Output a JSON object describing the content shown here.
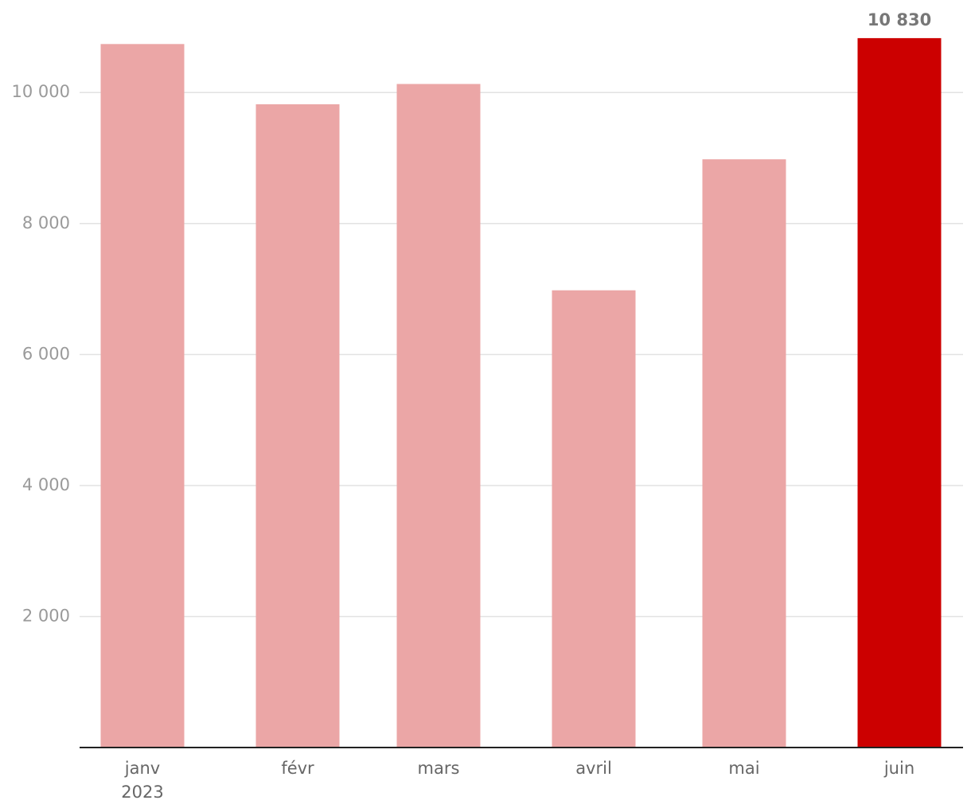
{
  "chart_data": {
    "type": "bar",
    "categories": [
      "janv",
      "févr",
      "mars",
      "avril",
      "mai",
      "juin"
    ],
    "year_label": "2023",
    "values": [
      10740,
      9820,
      10130,
      6980,
      8980,
      10830
    ],
    "value_labels": [
      null,
      null,
      null,
      null,
      null,
      "10 830"
    ],
    "colors": [
      "#eba6a6",
      "#eba6a6",
      "#eba6a6",
      "#eba6a6",
      "#eba6a6",
      "#cc0000"
    ],
    "ylim": [
      0,
      11400
    ],
    "yticks": [
      {
        "value": 2000,
        "label": "2 000"
      },
      {
        "value": 4000,
        "label": "4 000"
      },
      {
        "value": 6000,
        "label": "6 000"
      },
      {
        "value": 8000,
        "label": "8 000"
      },
      {
        "value": 10000,
        "label": "10 000"
      }
    ],
    "grid": true
  }
}
